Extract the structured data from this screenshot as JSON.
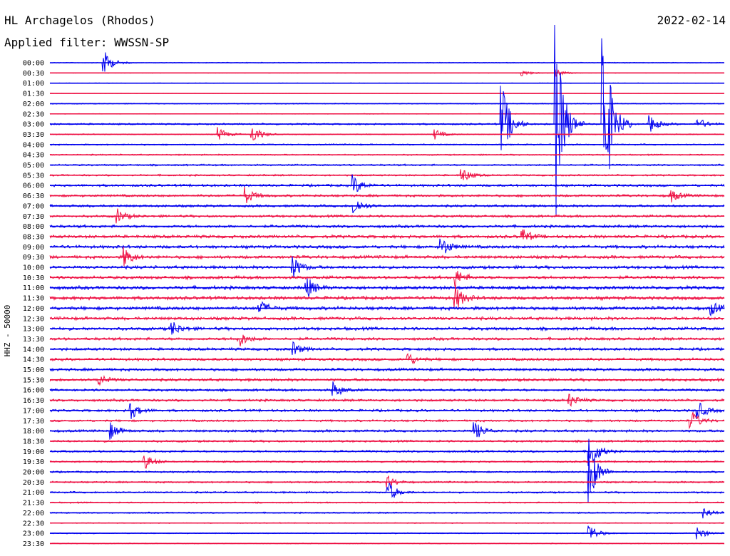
{
  "header": {
    "station": "HL Archagelos (Rhodos)",
    "date": "2022-02-14",
    "filter": "Applied filter: WWSSN-SP",
    "axis_label": "HHZ - 50000"
  },
  "colors": {
    "even_rows": "#0000ee",
    "odd_rows": "#ee1144"
  },
  "chart_data": {
    "type": "line",
    "title": "HL Archagelos (Rhodos)",
    "subtitle": "Applied filter: WWSSN-SP",
    "ylabel": "HHZ - 50000",
    "rows": [
      "00:00",
      "00:30",
      "01:00",
      "01:30",
      "02:00",
      "02:30",
      "03:00",
      "03:30",
      "04:00",
      "04:30",
      "05:00",
      "05:30",
      "06:00",
      "06:30",
      "07:00",
      "07:30",
      "08:00",
      "08:30",
      "09:00",
      "09:30",
      "10:00",
      "10:30",
      "11:00",
      "11:30",
      "12:00",
      "12:30",
      "13:00",
      "13:30",
      "14:00",
      "14:30",
      "15:00",
      "15:30",
      "16:00",
      "16:30",
      "17:00",
      "17:30",
      "18:00",
      "18:30",
      "19:00",
      "19:30",
      "20:00",
      "20:30",
      "21:00",
      "21:30",
      "22:00",
      "22:30",
      "23:00",
      "23:30"
    ],
    "row_noise_level": [
      0.5,
      0.3,
      0.4,
      0.2,
      0.6,
      0.4,
      1.0,
      0.6,
      0.8,
      0.8,
      1.0,
      1.0,
      1.4,
      1.4,
      1.4,
      1.4,
      1.6,
      1.8,
      1.8,
      1.8,
      1.8,
      1.8,
      2.0,
      2.0,
      2.0,
      1.8,
      1.8,
      1.6,
      1.6,
      1.6,
      1.6,
      1.6,
      1.4,
      1.4,
      1.4,
      1.2,
      1.4,
      1.2,
      1.2,
      1.0,
      1.0,
      1.0,
      1.0,
      0.8,
      0.8,
      0.5,
      0.6,
      0.5
    ],
    "events": [
      {
        "row": 0,
        "x": 0.08,
        "amp": 18
      },
      {
        "row": 1,
        "x": 0.7,
        "amp": 5
      },
      {
        "row": 1,
        "x": 0.75,
        "amp": 6
      },
      {
        "row": 6,
        "x": 0.67,
        "amp": 60
      },
      {
        "row": 6,
        "x": 0.75,
        "amp": 140
      },
      {
        "row": 6,
        "x": 0.82,
        "amp": 160
      },
      {
        "row": 6,
        "x": 0.89,
        "amp": 12
      },
      {
        "row": 6,
        "x": 0.96,
        "amp": 10
      },
      {
        "row": 7,
        "x": 0.25,
        "amp": 10
      },
      {
        "row": 7,
        "x": 0.3,
        "amp": 14
      },
      {
        "row": 7,
        "x": 0.57,
        "amp": 8
      },
      {
        "row": 11,
        "x": 0.61,
        "amp": 12
      },
      {
        "row": 12,
        "x": 0.45,
        "amp": 14
      },
      {
        "row": 13,
        "x": 0.29,
        "amp": 12
      },
      {
        "row": 13,
        "x": 0.92,
        "amp": 10
      },
      {
        "row": 14,
        "x": 0.45,
        "amp": 14
      },
      {
        "row": 15,
        "x": 0.1,
        "amp": 10
      },
      {
        "row": 17,
        "x": 0.7,
        "amp": 12
      },
      {
        "row": 18,
        "x": 0.58,
        "amp": 16
      },
      {
        "row": 19,
        "x": 0.11,
        "amp": 14
      },
      {
        "row": 20,
        "x": 0.36,
        "amp": 16
      },
      {
        "row": 21,
        "x": 0.6,
        "amp": 14
      },
      {
        "row": 22,
        "x": 0.38,
        "amp": 16
      },
      {
        "row": 23,
        "x": 0.6,
        "amp": 20
      },
      {
        "row": 24,
        "x": 0.31,
        "amp": 12
      },
      {
        "row": 24,
        "x": 0.98,
        "amp": 10
      },
      {
        "row": 26,
        "x": 0.18,
        "amp": 12
      },
      {
        "row": 27,
        "x": 0.28,
        "amp": 12
      },
      {
        "row": 28,
        "x": 0.36,
        "amp": 10
      },
      {
        "row": 29,
        "x": 0.53,
        "amp": 10
      },
      {
        "row": 31,
        "x": 0.07,
        "amp": 10
      },
      {
        "row": 32,
        "x": 0.42,
        "amp": 12
      },
      {
        "row": 33,
        "x": 0.77,
        "amp": 10
      },
      {
        "row": 34,
        "x": 0.12,
        "amp": 12
      },
      {
        "row": 34,
        "x": 0.96,
        "amp": 14
      },
      {
        "row": 35,
        "x": 0.95,
        "amp": 16
      },
      {
        "row": 36,
        "x": 0.09,
        "amp": 12
      },
      {
        "row": 36,
        "x": 0.63,
        "amp": 14
      },
      {
        "row": 38,
        "x": 0.8,
        "amp": 30
      },
      {
        "row": 39,
        "x": 0.14,
        "amp": 12
      },
      {
        "row": 40,
        "x": 0.8,
        "amp": 45
      },
      {
        "row": 41,
        "x": 0.5,
        "amp": 10
      },
      {
        "row": 42,
        "x": 0.5,
        "amp": 18
      },
      {
        "row": 44,
        "x": 0.97,
        "amp": 8
      },
      {
        "row": 46,
        "x": 0.8,
        "amp": 14
      },
      {
        "row": 46,
        "x": 0.96,
        "amp": 10
      }
    ]
  }
}
